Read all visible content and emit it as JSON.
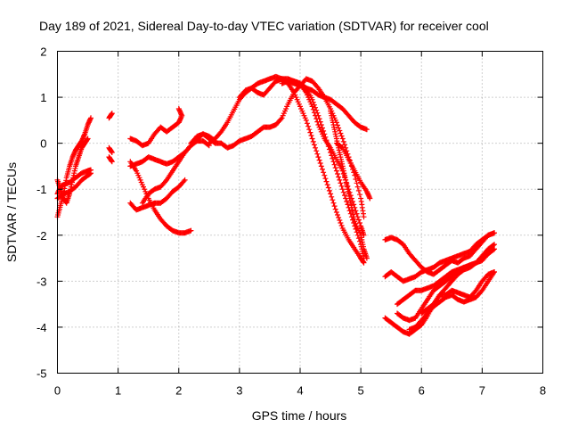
{
  "chart_data": {
    "type": "scatter",
    "title": "Day 189 of 2021, Sidereal Day-to-day VTEC variation (SDTVAR) for receiver cool",
    "xlabel": "GPS time / hours",
    "ylabel": "SDTVAR / TECUs",
    "xlim": [
      0,
      8
    ],
    "ylim": [
      -5,
      2
    ],
    "xticks": [
      "0",
      "1",
      "2",
      "3",
      "4",
      "5",
      "6",
      "7",
      "8"
    ],
    "yticks": [
      "-5",
      "-4",
      "-3",
      "-2",
      "-1",
      "0",
      "1",
      "2"
    ],
    "grid": true,
    "marker": "plus",
    "color": "#ff0000",
    "tracks": [
      [
        [
          0.0,
          -1.6
        ],
        [
          0.05,
          -1.35
        ],
        [
          0.1,
          -1.1
        ],
        [
          0.15,
          -0.75
        ],
        [
          0.2,
          -0.5
        ],
        [
          0.25,
          -0.3
        ],
        [
          0.3,
          -0.15
        ],
        [
          0.35,
          -0.05
        ],
        [
          0.4,
          0.05
        ],
        [
          0.45,
          0.2
        ],
        [
          0.5,
          0.4
        ],
        [
          0.55,
          0.55
        ]
      ],
      [
        [
          0.0,
          -0.8
        ],
        [
          0.05,
          -1.0
        ],
        [
          0.1,
          -1.2
        ],
        [
          0.15,
          -1.3
        ],
        [
          0.2,
          -1.1
        ],
        [
          0.25,
          -0.8
        ],
        [
          0.3,
          -0.5
        ],
        [
          0.35,
          -0.3
        ],
        [
          0.4,
          -0.1
        ],
        [
          0.45,
          0.0
        ],
        [
          0.5,
          0.1
        ]
      ],
      [
        [
          0.0,
          -1.1
        ],
        [
          0.05,
          -0.95
        ],
        [
          0.1,
          -0.9
        ],
        [
          0.2,
          -0.85
        ],
        [
          0.3,
          -0.75
        ],
        [
          0.4,
          -0.65
        ],
        [
          0.5,
          -0.6
        ],
        [
          0.55,
          -0.58
        ]
      ],
      [
        [
          0.0,
          -1.2
        ],
        [
          0.1,
          -1.1
        ],
        [
          0.2,
          -1.05
        ],
        [
          0.3,
          -0.95
        ],
        [
          0.4,
          -0.8
        ],
        [
          0.5,
          -0.7
        ],
        [
          0.55,
          -0.65
        ]
      ],
      [
        [
          0.85,
          0.55
        ],
        [
          0.9,
          0.65
        ]
      ],
      [
        [
          0.85,
          -0.1
        ],
        [
          0.9,
          -0.2
        ]
      ],
      [
        [
          0.85,
          -0.3
        ],
        [
          0.9,
          -0.4
        ]
      ],
      [
        [
          1.2,
          0.1
        ],
        [
          1.3,
          0.05
        ],
        [
          1.4,
          -0.05
        ],
        [
          1.5,
          0.0
        ],
        [
          1.6,
          0.2
        ],
        [
          1.7,
          0.35
        ],
        [
          1.8,
          0.25
        ],
        [
          1.9,
          0.35
        ],
        [
          2.0,
          0.45
        ],
        [
          2.05,
          0.6
        ],
        [
          2.0,
          0.75
        ]
      ],
      [
        [
          1.2,
          -0.5
        ],
        [
          1.3,
          -0.45
        ],
        [
          1.4,
          -0.4
        ],
        [
          1.5,
          -0.3
        ],
        [
          1.6,
          -0.35
        ],
        [
          1.7,
          -0.4
        ],
        [
          1.8,
          -0.45
        ],
        [
          1.9,
          -0.4
        ],
        [
          2.0,
          -0.3
        ],
        [
          2.1,
          -0.2
        ],
        [
          2.2,
          -0.05
        ],
        [
          2.3,
          0.1
        ],
        [
          2.4,
          0.2
        ],
        [
          2.5,
          0.15
        ],
        [
          2.6,
          0.05
        ]
      ],
      [
        [
          1.2,
          -0.4
        ],
        [
          1.3,
          -0.6
        ],
        [
          1.4,
          -0.9
        ],
        [
          1.5,
          -1.2
        ],
        [
          1.6,
          -1.45
        ],
        [
          1.7,
          -1.65
        ],
        [
          1.8,
          -1.8
        ],
        [
          1.9,
          -1.9
        ],
        [
          2.0,
          -1.95
        ],
        [
          2.1,
          -1.95
        ],
        [
          2.2,
          -1.9
        ]
      ],
      [
        [
          1.2,
          -1.3
        ],
        [
          1.3,
          -1.45
        ],
        [
          1.4,
          -1.4
        ],
        [
          1.5,
          -1.35
        ],
        [
          1.6,
          -1.3
        ],
        [
          1.7,
          -1.3
        ],
        [
          1.8,
          -1.2
        ],
        [
          1.9,
          -1.05
        ],
        [
          2.0,
          -0.95
        ],
        [
          2.1,
          -0.8
        ]
      ],
      [
        [
          1.4,
          -1.3
        ],
        [
          1.5,
          -1.1
        ],
        [
          1.6,
          -1.0
        ],
        [
          1.7,
          -0.95
        ],
        [
          1.8,
          -0.8
        ],
        [
          1.9,
          -0.6
        ],
        [
          2.0,
          -0.4
        ],
        [
          2.1,
          -0.2
        ],
        [
          2.2,
          -0.05
        ],
        [
          2.3,
          0.05
        ],
        [
          2.4,
          0.05
        ],
        [
          2.5,
          -0.05
        ]
      ],
      [
        [
          2.2,
          0.0
        ],
        [
          2.3,
          0.15
        ],
        [
          2.4,
          0.2
        ],
        [
          2.5,
          0.1
        ],
        [
          2.6,
          0.0
        ],
        [
          2.7,
          0.0
        ],
        [
          2.8,
          -0.1
        ],
        [
          2.9,
          -0.05
        ],
        [
          3.0,
          0.05
        ],
        [
          3.1,
          0.1
        ],
        [
          3.2,
          0.15
        ],
        [
          3.3,
          0.25
        ],
        [
          3.4,
          0.35
        ],
        [
          3.5,
          0.35
        ],
        [
          3.6,
          0.4
        ],
        [
          3.7,
          0.55
        ],
        [
          3.8,
          0.85
        ],
        [
          3.9,
          1.1
        ],
        [
          4.0,
          1.25
        ],
        [
          4.1,
          1.4
        ],
        [
          4.2,
          1.35
        ],
        [
          4.3,
          1.2
        ],
        [
          4.4,
          1.0
        ],
        [
          4.5,
          0.75
        ],
        [
          4.6,
          0.45
        ],
        [
          4.7,
          0.1
        ],
        [
          4.8,
          -0.3
        ],
        [
          4.9,
          -0.7
        ],
        [
          5.0,
          -1.2
        ],
        [
          5.05,
          -1.6
        ]
      ],
      [
        [
          2.5,
          0.0
        ],
        [
          2.6,
          0.1
        ],
        [
          2.7,
          0.25
        ],
        [
          2.8,
          0.45
        ],
        [
          2.9,
          0.7
        ],
        [
          3.0,
          0.95
        ],
        [
          3.1,
          1.1
        ],
        [
          3.2,
          1.2
        ],
        [
          3.3,
          1.3
        ],
        [
          3.4,
          1.35
        ],
        [
          3.5,
          1.4
        ],
        [
          3.6,
          1.45
        ],
        [
          3.7,
          1.4
        ],
        [
          3.8,
          1.3
        ],
        [
          3.9,
          1.1
        ],
        [
          4.0,
          0.8
        ],
        [
          4.1,
          0.5
        ],
        [
          4.2,
          0.1
        ],
        [
          4.3,
          -0.3
        ],
        [
          4.4,
          -0.7
        ],
        [
          4.5,
          -1.1
        ],
        [
          4.6,
          -1.5
        ],
        [
          4.7,
          -1.85
        ],
        [
          4.8,
          -2.1
        ],
        [
          4.9,
          -2.3
        ],
        [
          5.0,
          -2.5
        ],
        [
          5.05,
          -2.6
        ]
      ],
      [
        [
          3.0,
          1.0
        ],
        [
          3.1,
          1.15
        ],
        [
          3.2,
          1.2
        ],
        [
          3.3,
          1.1
        ],
        [
          3.4,
          1.05
        ],
        [
          3.5,
          1.2
        ],
        [
          3.6,
          1.35
        ],
        [
          3.7,
          1.4
        ],
        [
          3.8,
          1.35
        ],
        [
          3.9,
          1.3
        ],
        [
          4.0,
          1.25
        ],
        [
          4.1,
          1.2
        ],
        [
          4.2,
          1.15
        ],
        [
          4.3,
          1.05
        ],
        [
          4.4,
          1.0
        ],
        [
          4.5,
          0.95
        ],
        [
          4.6,
          0.85
        ],
        [
          4.7,
          0.75
        ],
        [
          4.8,
          0.6
        ],
        [
          4.9,
          0.45
        ],
        [
          5.0,
          0.35
        ],
        [
          5.1,
          0.3
        ]
      ],
      [
        [
          3.6,
          1.35
        ],
        [
          3.7,
          1.4
        ],
        [
          3.8,
          1.4
        ],
        [
          3.9,
          1.35
        ],
        [
          4.0,
          1.3
        ],
        [
          4.1,
          1.2
        ],
        [
          4.2,
          0.95
        ],
        [
          4.3,
          0.6
        ],
        [
          4.4,
          0.2
        ],
        [
          4.5,
          -0.2
        ],
        [
          4.6,
          -0.6
        ],
        [
          4.7,
          -1.0
        ],
        [
          4.8,
          -1.4
        ],
        [
          4.9,
          -1.8
        ],
        [
          5.0,
          -2.2
        ],
        [
          5.05,
          -2.5
        ]
      ],
      [
        [
          3.7,
          1.3
        ],
        [
          3.8,
          1.35
        ],
        [
          3.9,
          1.35
        ],
        [
          4.0,
          1.3
        ],
        [
          4.1,
          1.1
        ],
        [
          4.2,
          0.8
        ],
        [
          4.3,
          0.4
        ],
        [
          4.4,
          0.1
        ],
        [
          4.5,
          -0.1
        ],
        [
          4.6,
          -0.35
        ],
        [
          4.7,
          -0.6
        ],
        [
          4.8,
          -1.0
        ],
        [
          4.9,
          -1.4
        ],
        [
          5.0,
          -1.8
        ],
        [
          5.05,
          -2.0
        ]
      ],
      [
        [
          4.5,
          0.7
        ],
        [
          4.55,
          0.4
        ],
        [
          4.6,
          0.1
        ],
        [
          4.65,
          -0.2
        ],
        [
          4.7,
          -0.5
        ],
        [
          4.75,
          -0.8
        ],
        [
          4.8,
          -1.1
        ],
        [
          4.85,
          -1.4
        ],
        [
          4.9,
          -1.7
        ],
        [
          5.0,
          -2.0
        ],
        [
          5.05,
          -2.3
        ],
        [
          5.1,
          -2.5
        ]
      ],
      [
        [
          4.6,
          0.0
        ],
        [
          4.7,
          -0.1
        ],
        [
          4.8,
          -0.35
        ],
        [
          4.9,
          -0.6
        ],
        [
          5.0,
          -0.85
        ],
        [
          5.1,
          -1.05
        ],
        [
          5.15,
          -1.2
        ]
      ],
      [
        [
          5.4,
          -2.1
        ],
        [
          5.5,
          -2.05
        ],
        [
          5.6,
          -2.1
        ],
        [
          5.7,
          -2.2
        ],
        [
          5.8,
          -2.4
        ],
        [
          5.9,
          -2.55
        ],
        [
          6.0,
          -2.7
        ],
        [
          6.1,
          -2.8
        ],
        [
          6.2,
          -2.85
        ],
        [
          6.3,
          -2.75
        ],
        [
          6.4,
          -2.65
        ],
        [
          6.5,
          -2.55
        ],
        [
          6.6,
          -2.6
        ],
        [
          6.7,
          -2.5
        ],
        [
          6.8,
          -2.45
        ],
        [
          6.9,
          -2.3
        ],
        [
          7.0,
          -2.15
        ],
        [
          7.1,
          -2.0
        ],
        [
          7.2,
          -1.95
        ]
      ],
      [
        [
          5.4,
          -2.9
        ],
        [
          5.5,
          -2.8
        ],
        [
          5.6,
          -2.9
        ],
        [
          5.7,
          -3.0
        ],
        [
          5.8,
          -2.95
        ],
        [
          5.9,
          -2.9
        ],
        [
          6.0,
          -2.8
        ],
        [
          6.1,
          -2.75
        ],
        [
          6.2,
          -2.7
        ],
        [
          6.3,
          -2.6
        ],
        [
          6.4,
          -2.55
        ],
        [
          6.5,
          -2.5
        ],
        [
          6.6,
          -2.45
        ],
        [
          6.7,
          -2.4
        ],
        [
          6.8,
          -2.35
        ],
        [
          6.9,
          -2.2
        ],
        [
          7.0,
          -2.1
        ],
        [
          7.1,
          -2.0
        ],
        [
          7.2,
          -1.95
        ]
      ],
      [
        [
          5.4,
          -3.8
        ],
        [
          5.5,
          -3.9
        ],
        [
          5.6,
          -4.0
        ],
        [
          5.7,
          -4.1
        ],
        [
          5.8,
          -4.15
        ],
        [
          5.9,
          -4.05
        ],
        [
          6.0,
          -3.95
        ],
        [
          6.1,
          -3.75
        ],
        [
          6.2,
          -3.5
        ],
        [
          6.3,
          -3.3
        ],
        [
          6.4,
          -3.15
        ],
        [
          6.5,
          -3.0
        ],
        [
          6.6,
          -2.85
        ],
        [
          6.7,
          -2.75
        ],
        [
          6.8,
          -2.7
        ],
        [
          6.9,
          -2.6
        ],
        [
          7.0,
          -2.5
        ],
        [
          7.1,
          -2.4
        ],
        [
          7.2,
          -2.3
        ]
      ],
      [
        [
          5.6,
          -3.5
        ],
        [
          5.7,
          -3.4
        ],
        [
          5.8,
          -3.3
        ],
        [
          5.9,
          -3.2
        ],
        [
          6.0,
          -3.2
        ],
        [
          6.1,
          -3.15
        ],
        [
          6.2,
          -3.1
        ],
        [
          6.3,
          -3.0
        ],
        [
          6.4,
          -2.9
        ],
        [
          6.5,
          -2.8
        ],
        [
          6.6,
          -2.75
        ],
        [
          6.7,
          -2.7
        ],
        [
          6.8,
          -2.65
        ],
        [
          6.9,
          -2.6
        ],
        [
          7.0,
          -2.45
        ],
        [
          7.1,
          -2.3
        ],
        [
          7.2,
          -2.2
        ]
      ],
      [
        [
          5.6,
          -3.7
        ],
        [
          5.7,
          -3.8
        ],
        [
          5.8,
          -3.85
        ],
        [
          5.9,
          -3.8
        ],
        [
          6.0,
          -3.6
        ],
        [
          6.1,
          -3.4
        ],
        [
          6.2,
          -3.2
        ],
        [
          6.3,
          -3.1
        ],
        [
          6.4,
          -3.0
        ],
        [
          6.5,
          -2.9
        ],
        [
          6.6,
          -2.8
        ],
        [
          6.7,
          -2.7
        ],
        [
          6.8,
          -2.65
        ],
        [
          6.9,
          -2.6
        ],
        [
          7.0,
          -2.55
        ],
        [
          7.1,
          -2.4
        ],
        [
          7.2,
          -2.3
        ]
      ],
      [
        [
          5.8,
          -4.05
        ],
        [
          5.9,
          -4.0
        ],
        [
          6.0,
          -3.85
        ],
        [
          6.1,
          -3.7
        ],
        [
          6.2,
          -3.55
        ],
        [
          6.3,
          -3.45
        ],
        [
          6.4,
          -3.35
        ],
        [
          6.5,
          -3.3
        ],
        [
          6.6,
          -3.4
        ],
        [
          6.7,
          -3.45
        ],
        [
          6.8,
          -3.4
        ],
        [
          6.9,
          -3.35
        ],
        [
          7.0,
          -3.2
        ],
        [
          7.1,
          -3.0
        ],
        [
          7.2,
          -2.8
        ]
      ],
      [
        [
          6.0,
          -3.7
        ],
        [
          6.1,
          -3.6
        ],
        [
          6.2,
          -3.5
        ],
        [
          6.3,
          -3.3
        ],
        [
          6.4,
          -3.3
        ],
        [
          6.5,
          -3.2
        ],
        [
          6.6,
          -3.25
        ],
        [
          6.7,
          -3.3
        ],
        [
          6.8,
          -3.35
        ],
        [
          6.9,
          -3.2
        ],
        [
          7.0,
          -3.0
        ],
        [
          7.1,
          -2.85
        ],
        [
          7.2,
          -2.8
        ]
      ]
    ]
  }
}
